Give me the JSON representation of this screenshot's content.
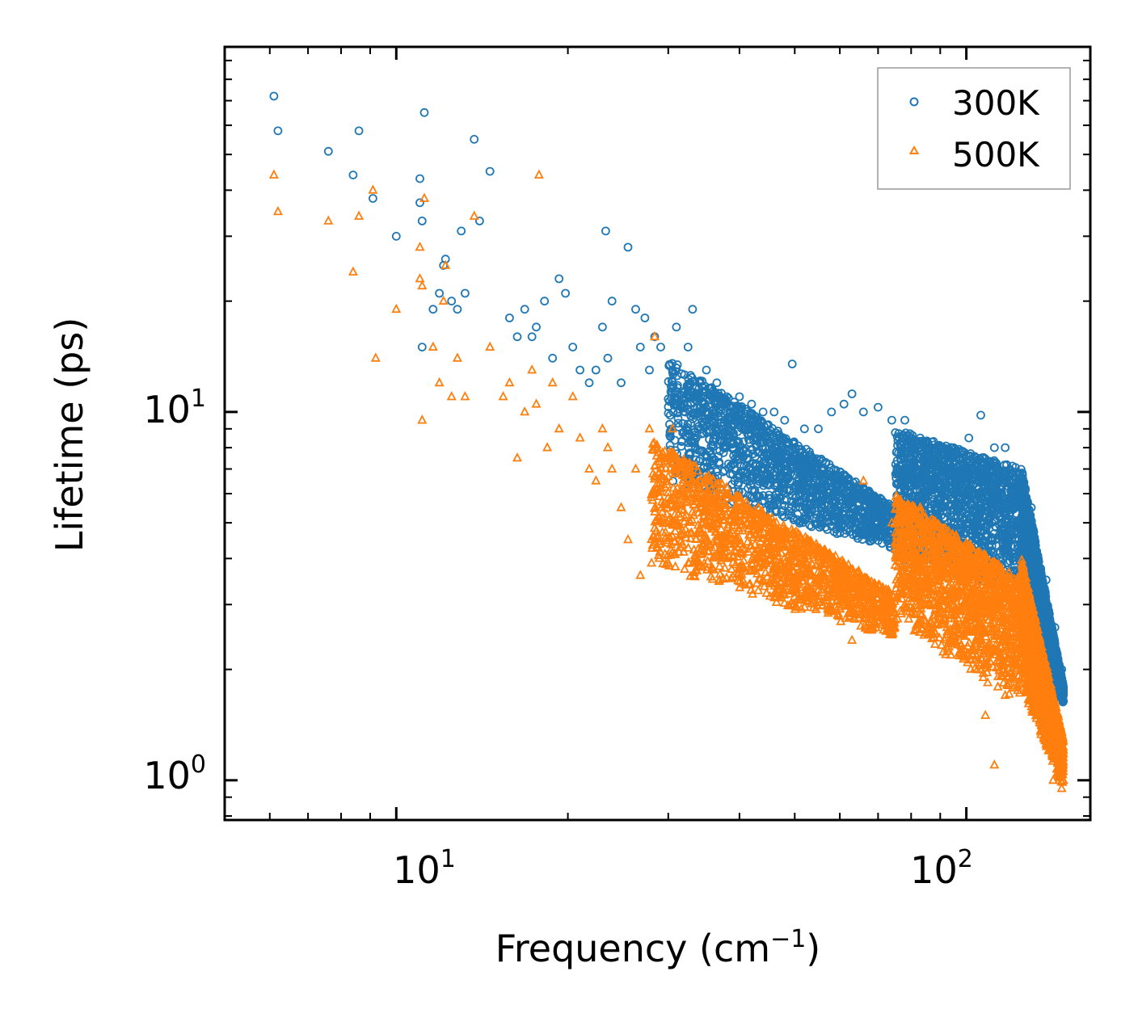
{
  "chart_data": {
    "type": "scatter",
    "xscale": "log",
    "yscale": "log",
    "xlabel": "Frequency (cm",
    "xlabel_sup": "−1",
    "xlabel_end": ")",
    "ylabel": "Lifetime (ps)",
    "xlim": [
      5.0,
      165.0
    ],
    "ylim": [
      0.78,
      98.0
    ],
    "x_ticks": [
      {
        "base": "10",
        "exp": "1",
        "value": 10
      },
      {
        "base": "10",
        "exp": "2",
        "value": 100
      }
    ],
    "y_ticks": [
      {
        "base": "10",
        "exp": "0",
        "value": 1
      },
      {
        "base": "10",
        "exp": "1",
        "value": 10
      }
    ],
    "legend_position": "top-right",
    "series": [
      {
        "name": "300K",
        "marker": "circle",
        "color": "#1f77b4",
        "points": [
          [
            6.1,
            72
          ],
          [
            6.2,
            58
          ],
          [
            7.6,
            51
          ],
          [
            8.4,
            44
          ],
          [
            8.6,
            58
          ],
          [
            9.1,
            38
          ],
          [
            10.0,
            30
          ],
          [
            11.0,
            43
          ],
          [
            11.0,
            37
          ],
          [
            11.1,
            33
          ],
          [
            11.2,
            65
          ],
          [
            11.1,
            15
          ],
          [
            11.6,
            19
          ],
          [
            11.9,
            21
          ],
          [
            12.1,
            25
          ],
          [
            12.2,
            26
          ],
          [
            12.5,
            20
          ],
          [
            12.8,
            19
          ],
          [
            13.0,
            31
          ],
          [
            13.2,
            21
          ],
          [
            13.7,
            55
          ],
          [
            14.0,
            33
          ],
          [
            14.6,
            45
          ],
          [
            15.8,
            18
          ],
          [
            16.3,
            16
          ],
          [
            16.8,
            19
          ],
          [
            17.3,
            16
          ],
          [
            17.6,
            17
          ],
          [
            18.2,
            20
          ],
          [
            18.8,
            14
          ],
          [
            19.3,
            23
          ],
          [
            19.8,
            21
          ],
          [
            20.4,
            15
          ],
          [
            21.0,
            13
          ],
          [
            21.8,
            12
          ],
          [
            22.4,
            13
          ],
          [
            23.0,
            17
          ],
          [
            23.5,
            14
          ],
          [
            23.3,
            31
          ],
          [
            23.9,
            20
          ],
          [
            24.8,
            12
          ],
          [
            25.5,
            28
          ],
          [
            26.3,
            19
          ],
          [
            26.8,
            15
          ],
          [
            27.3,
            18
          ],
          [
            27.8,
            13
          ],
          [
            28.4,
            16
          ],
          [
            29.1,
            15
          ],
          [
            30.5,
            13
          ],
          [
            31.0,
            17
          ],
          [
            32.5,
            15
          ],
          [
            33.1,
            19
          ],
          [
            34.0,
            12
          ],
          [
            35.0,
            13
          ],
          [
            36.5,
            12
          ],
          [
            38.0,
            11
          ],
          [
            40.0,
            11
          ],
          [
            42.0,
            10.5
          ],
          [
            44.0,
            10
          ],
          [
            46.0,
            10
          ],
          [
            48.0,
            9.5
          ],
          [
            49.5,
            13.5
          ],
          [
            52.0,
            9
          ],
          [
            55.0,
            9
          ],
          [
            58.0,
            10
          ],
          [
            61.0,
            10.5
          ],
          [
            63.0,
            11.2
          ],
          [
            66.0,
            10
          ],
          [
            70.0,
            10.3
          ],
          [
            74.0,
            9.5
          ],
          [
            78.0,
            9.5
          ],
          [
            83.0,
            8.5
          ],
          [
            88.0,
            8
          ],
          [
            95.0,
            8
          ],
          [
            101.0,
            8.5
          ],
          [
            106.0,
            9.8
          ],
          [
            112.0,
            8
          ],
          [
            117.0,
            8
          ],
          [
            124.0,
            6.5
          ],
          [
            130.0,
            5.5
          ],
          [
            138.0,
            3.5
          ],
          [
            143.0,
            2.6
          ],
          [
            147.0,
            2.0
          ]
        ],
        "bands": [
          {
            "x_from": 30,
            "x_to": 75,
            "y_from": 14,
            "y_to": 5.5,
            "y_lo_end": 4.2
          },
          {
            "x_from": 75,
            "x_to": 125,
            "y_from": 9,
            "y_to": 7,
            "y_lo_end": 3.2
          },
          {
            "x_from": 125,
            "x_to": 148,
            "y_from": 7,
            "y_to": 1.8,
            "y_lo_end": 1.6
          }
        ]
      },
      {
        "name": "500K",
        "marker": "triangle",
        "color": "#ff7f0e",
        "points": [
          [
            6.1,
            44
          ],
          [
            6.2,
            35
          ],
          [
            7.6,
            33
          ],
          [
            8.4,
            24
          ],
          [
            8.6,
            34
          ],
          [
            9.1,
            40
          ],
          [
            9.2,
            14
          ],
          [
            10.0,
            19
          ],
          [
            11.0,
            28
          ],
          [
            11.0,
            23
          ],
          [
            11.1,
            22
          ],
          [
            11.2,
            38
          ],
          [
            11.1,
            9.5
          ],
          [
            11.6,
            15
          ],
          [
            11.9,
            12
          ],
          [
            12.1,
            20
          ],
          [
            12.2,
            25
          ],
          [
            12.5,
            11
          ],
          [
            12.8,
            14
          ],
          [
            13.2,
            11
          ],
          [
            13.7,
            34
          ],
          [
            14.6,
            15
          ],
          [
            15.4,
            11
          ],
          [
            15.8,
            12
          ],
          [
            16.3,
            7.5
          ],
          [
            16.8,
            10
          ],
          [
            17.3,
            13
          ],
          [
            17.6,
            10.5
          ],
          [
            17.8,
            44
          ],
          [
            18.4,
            8
          ],
          [
            18.8,
            12
          ],
          [
            19.3,
            9
          ],
          [
            20.4,
            11
          ],
          [
            21.0,
            8.5
          ],
          [
            21.8,
            7
          ],
          [
            22.4,
            6.5
          ],
          [
            23.0,
            9
          ],
          [
            23.5,
            8
          ],
          [
            23.9,
            7
          ],
          [
            24.8,
            5.5
          ],
          [
            25.5,
            4.5
          ],
          [
            26.3,
            7
          ],
          [
            26.8,
            3.6
          ],
          [
            27.8,
            9
          ],
          [
            28.4,
            16
          ],
          [
            29.1,
            7.5
          ],
          [
            30.5,
            9
          ],
          [
            31.0,
            7
          ],
          [
            32.5,
            6
          ],
          [
            34.0,
            6
          ],
          [
            35.0,
            5
          ],
          [
            36.5,
            4.5
          ],
          [
            38.0,
            4
          ],
          [
            40.0,
            3.8
          ],
          [
            42.0,
            3.7
          ],
          [
            46.0,
            3.5
          ],
          [
            50.0,
            3.4
          ],
          [
            55.0,
            3.1
          ],
          [
            60.0,
            3.0
          ],
          [
            63.0,
            2.4
          ],
          [
            66.0,
            6.5
          ],
          [
            70.0,
            2.8
          ],
          [
            74.0,
            5
          ],
          [
            78.0,
            3.0
          ],
          [
            83.0,
            5.5
          ],
          [
            88.0,
            2.8
          ],
          [
            95.0,
            3.0
          ],
          [
            101.0,
            3.5
          ],
          [
            106.0,
            3.8
          ],
          [
            108.0,
            1.5
          ],
          [
            112.0,
            1.1
          ],
          [
            117.0,
            1.7
          ],
          [
            124.0,
            3.6
          ],
          [
            130.0,
            2.5
          ],
          [
            138.0,
            1.4
          ],
          [
            142.0,
            1.0
          ],
          [
            147.0,
            0.95
          ]
        ],
        "bands": [
          {
            "x_from": 28,
            "x_to": 75,
            "y_from": 8.5,
            "y_to": 3.2,
            "y_lo_end": 2.4
          },
          {
            "x_from": 75,
            "x_to": 125,
            "y_from": 6,
            "y_to": 3.5,
            "y_lo_end": 1.6
          },
          {
            "x_from": 125,
            "x_to": 148,
            "y_from": 4,
            "y_to": 1.3,
            "y_lo_end": 0.95
          }
        ]
      }
    ]
  }
}
